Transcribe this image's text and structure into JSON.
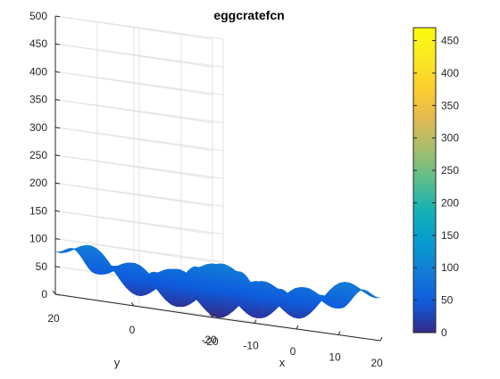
{
  "chart_data": {
    "type": "surface3d",
    "title": "eggcratefcn",
    "function": "x^2 + y^2 + 25*(sin(x)^2 + sin(y)^2)",
    "xlabel": "x",
    "ylabel": "y",
    "zlabel": "",
    "xlim": [
      -20,
      20
    ],
    "ylim": [
      -20,
      20
    ],
    "zlim": [
      0,
      500
    ],
    "x_domain": [
      -6.2,
      6.2
    ],
    "y_domain": [
      -6.2,
      6.2
    ],
    "x_ticks": [
      -20,
      -10,
      0,
      10,
      20
    ],
    "y_ticks": [
      -20,
      0,
      20
    ],
    "z_ticks": [
      0,
      50,
      100,
      150,
      200,
      250,
      300,
      350,
      400,
      450,
      500
    ],
    "grid": true,
    "colormap": "parula",
    "colorbar": {
      "limits": [
        0,
        470
      ],
      "ticks": [
        0,
        50,
        100,
        150,
        200,
        250,
        300,
        350,
        400,
        450
      ]
    }
  }
}
